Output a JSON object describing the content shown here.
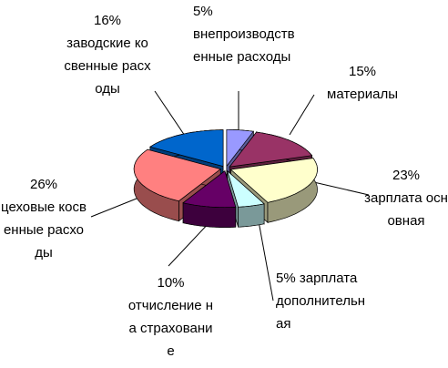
{
  "chart_data": {
    "type": "pie",
    "categories": [
      "внепроизводственные расходы",
      "материалы",
      "зарплата основная",
      "зарплата дополнительная",
      "отчисление на страхование",
      "цеховые косвенные расходы",
      "заводские косвенные расходы"
    ],
    "values": [
      5,
      15,
      23,
      5,
      10,
      26,
      16
    ],
    "value_labels": [
      "5%",
      "15%",
      "23%",
      "5%",
      "10%",
      "26%",
      "16%"
    ],
    "colors": [
      "#9999ff",
      "#993366",
      "#ffffcc",
      "#ccffff",
      "#660066",
      "#ff8080",
      "#0066cc"
    ],
    "three_d": true
  }
}
